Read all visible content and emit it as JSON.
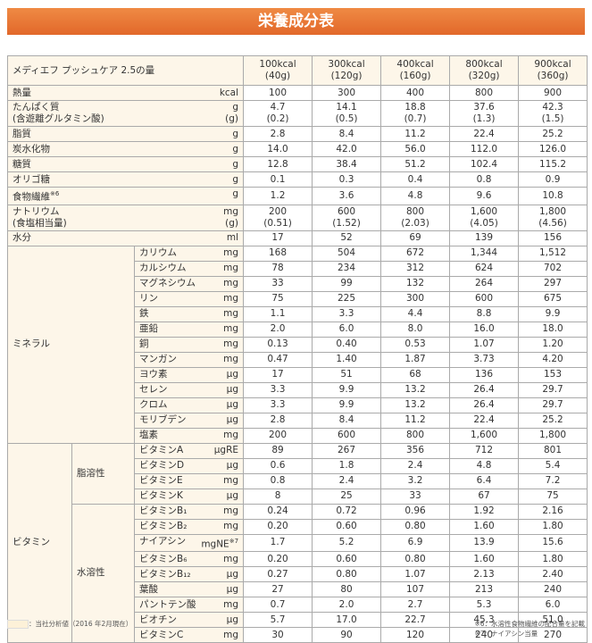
{
  "title": "栄養成分表",
  "table": {
    "header_label": "メディエフ プッシュケア 2.5の量",
    "columns": [
      {
        "kcal": "100kcal",
        "g": "(40g)"
      },
      {
        "kcal": "300kcal",
        "g": "(120g)"
      },
      {
        "kcal": "400kcal",
        "g": "(160g)"
      },
      {
        "kcal": "800kcal",
        "g": "(320g)"
      },
      {
        "kcal": "900kcal",
        "g": "(360g)"
      }
    ],
    "rows": [
      {
        "label": "熱量",
        "unit": "kcal",
        "values": [
          "100",
          "300",
          "400",
          "800",
          "900"
        ]
      },
      {
        "label": "たんぱく質",
        "unit": "g",
        "values": [
          "4.7",
          "14.1",
          "18.8",
          "37.6",
          "42.3"
        ],
        "sub_label": "(含遊離グルタミン酸)",
        "sub_unit": "(g)",
        "sub_values": [
          "(0.2)",
          "(0.5)",
          "(0.7)",
          "(1.3)",
          "(1.5)"
        ]
      },
      {
        "label": "脂質",
        "unit": "g",
        "values": [
          "2.8",
          "8.4",
          "11.2",
          "22.4",
          "25.2"
        ]
      },
      {
        "label": "炭水化物",
        "unit": "g",
        "values": [
          "14.0",
          "42.0",
          "56.0",
          "112.0",
          "126.0"
        ]
      },
      {
        "label": "糖質",
        "unit": "g",
        "values": [
          "12.8",
          "38.4",
          "51.2",
          "102.4",
          "115.2"
        ]
      },
      {
        "label": "オリゴ糖",
        "unit": "g",
        "values": [
          "0.1",
          "0.3",
          "0.4",
          "0.8",
          "0.9"
        ]
      },
      {
        "label": "食物繊維",
        "note": "※6",
        "unit": "g",
        "values": [
          "1.2",
          "3.6",
          "4.8",
          "9.6",
          "10.8"
        ]
      },
      {
        "label": "ナトリウム",
        "unit": "mg",
        "values": [
          "200",
          "600",
          "800",
          "1,600",
          "1,800"
        ],
        "sub_label": "(食塩相当量)",
        "sub_unit": "(g)",
        "sub_values": [
          "(0.51)",
          "(1.52)",
          "(2.03)",
          "(4.05)",
          "(4.56)"
        ]
      },
      {
        "label": "水分",
        "unit": "ml",
        "values": [
          "17",
          "52",
          "69",
          "139",
          "156"
        ]
      }
    ],
    "minerals": {
      "group": "ミネラル",
      "rows": [
        {
          "label": "カリウム",
          "unit": "mg",
          "values": [
            "168",
            "504",
            "672",
            "1,344",
            "1,512"
          ]
        },
        {
          "label": "カルシウム",
          "unit": "mg",
          "values": [
            "78",
            "234",
            "312",
            "624",
            "702"
          ]
        },
        {
          "label": "マグネシウム",
          "unit": "mg",
          "values": [
            "33",
            "99",
            "132",
            "264",
            "297"
          ]
        },
        {
          "label": "リン",
          "unit": "mg",
          "values": [
            "75",
            "225",
            "300",
            "600",
            "675"
          ]
        },
        {
          "label": "鉄",
          "unit": "mg",
          "values": [
            "1.1",
            "3.3",
            "4.4",
            "8.8",
            "9.9"
          ]
        },
        {
          "label": "亜鉛",
          "unit": "mg",
          "values": [
            "2.0",
            "6.0",
            "8.0",
            "16.0",
            "18.0"
          ]
        },
        {
          "label": "銅",
          "unit": "mg",
          "values": [
            "0.13",
            "0.40",
            "0.53",
            "1.07",
            "1.20"
          ]
        },
        {
          "label": "マンガン",
          "unit": "mg",
          "values": [
            "0.47",
            "1.40",
            "1.87",
            "3.73",
            "4.20"
          ]
        },
        {
          "label": "ヨウ素",
          "unit": "μg",
          "values": [
            "17",
            "51",
            "68",
            "136",
            "153"
          ]
        },
        {
          "label": "セレン",
          "unit": "μg",
          "values": [
            "3.3",
            "9.9",
            "13.2",
            "26.4",
            "29.7"
          ]
        },
        {
          "label": "クロム",
          "unit": "μg",
          "values": [
            "3.3",
            "9.9",
            "13.2",
            "26.4",
            "29.7"
          ]
        },
        {
          "label": "モリブデン",
          "unit": "μg",
          "values": [
            "2.8",
            "8.4",
            "11.2",
            "22.4",
            "25.2"
          ]
        },
        {
          "label": "塩素",
          "unit": "mg",
          "values": [
            "200",
            "600",
            "800",
            "1,600",
            "1,800"
          ]
        }
      ]
    },
    "vitamins": {
      "group": "ビタミン",
      "subgroups": [
        {
          "name": "脂溶性",
          "rows": [
            {
              "label": "ビタミンA",
              "unit": "μgRE",
              "values": [
                "89",
                "267",
                "356",
                "712",
                "801"
              ]
            },
            {
              "label": "ビタミンD",
              "unit": "μg",
              "values": [
                "0.6",
                "1.8",
                "2.4",
                "4.8",
                "5.4"
              ]
            },
            {
              "label": "ビタミンE",
              "unit": "mg",
              "values": [
                "0.8",
                "2.4",
                "3.2",
                "6.4",
                "7.2"
              ]
            },
            {
              "label": "ビタミンK",
              "unit": "μg",
              "values": [
                "8",
                "25",
                "33",
                "67",
                "75"
              ]
            }
          ]
        },
        {
          "name": "水溶性",
          "rows": [
            {
              "label": "ビタミンB₁",
              "unit": "mg",
              "values": [
                "0.24",
                "0.72",
                "0.96",
                "1.92",
                "2.16"
              ]
            },
            {
              "label": "ビタミンB₂",
              "unit": "mg",
              "values": [
                "0.20",
                "0.60",
                "0.80",
                "1.60",
                "1.80"
              ]
            },
            {
              "label": "ナイアシン",
              "unit": "mgNE",
              "note": "※7",
              "values": [
                "1.7",
                "5.2",
                "6.9",
                "13.9",
                "15.6"
              ]
            },
            {
              "label": "ビタミンB₆",
              "unit": "mg",
              "values": [
                "0.20",
                "0.60",
                "0.80",
                "1.60",
                "1.80"
              ]
            },
            {
              "label": "ビタミンB₁₂",
              "unit": "μg",
              "values": [
                "0.27",
                "0.80",
                "1.07",
                "2.13",
                "2.40"
              ]
            },
            {
              "label": "葉酸",
              "unit": "μg",
              "values": [
                "27",
                "80",
                "107",
                "213",
                "240"
              ]
            },
            {
              "label": "パントテン酸",
              "unit": "mg",
              "values": [
                "0.7",
                "2.0",
                "2.7",
                "5.3",
                "6.0"
              ]
            },
            {
              "label": "ビオチン",
              "unit": "μg",
              "values": [
                "5.7",
                "17.0",
                "22.7",
                "45.3",
                "51.0"
              ]
            },
            {
              "label": "ビタミンC",
              "unit": "mg",
              "values": [
                "30",
                "90",
                "120",
                "240",
                "270"
              ]
            }
          ]
        }
      ]
    }
  },
  "footer": {
    "legend": "：当社分析値（2016 年2月現在）",
    "notes": [
      "※6：水溶性食物繊維の配合量を記載",
      "※7：ナイアシン当量"
    ]
  }
}
